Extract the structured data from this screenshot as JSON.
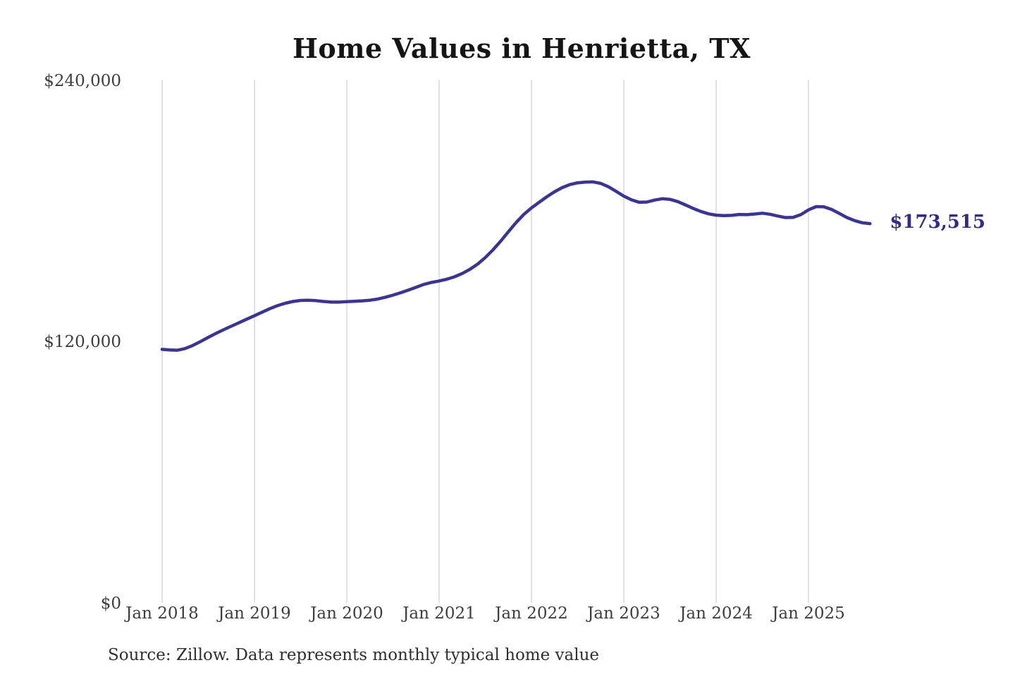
{
  "title": "Home Values in Henrietta, TX",
  "end_label": "$173,515",
  "source_note": "Source: Zillow. Data represents monthly typical home value",
  "colors": {
    "line": "#3b3490",
    "end_label": "#312d85",
    "gridline": "#c6c6c6",
    "title_text": "#151515",
    "axis_text": "#3e3e3e",
    "source_text": "#2f2f2f",
    "background": "#ffffff"
  },
  "chart_data": {
    "type": "line",
    "title": "Home Values in Henrietta, TX",
    "xlabel": "",
    "ylabel": "",
    "x_start": "Jan 2018",
    "x_end": "Sep 2025",
    "frequency": "monthly",
    "x_tick_labels": [
      "Jan 2018",
      "Jan 2019",
      "Jan 2020",
      "Jan 2021",
      "Jan 2022",
      "Jan 2023",
      "Jan 2024",
      "Jan 2025"
    ],
    "y_tick_labels": [
      "$240,000",
      "$120,000",
      "$0"
    ],
    "ylim": [
      0,
      240000
    ],
    "grid": "vertical-only",
    "legend": "none",
    "end_value": 173515,
    "values": [
      116000,
      115700,
      115600,
      116400,
      117800,
      119600,
      121500,
      123300,
      125000,
      126600,
      128200,
      129800,
      131400,
      133000,
      134600,
      136000,
      137100,
      137900,
      138400,
      138500,
      138300,
      137900,
      137600,
      137600,
      137800,
      138000,
      138200,
      138500,
      139000,
      139800,
      140800,
      141900,
      143100,
      144400,
      145700,
      146600,
      147300,
      148100,
      149200,
      150700,
      152600,
      155000,
      158000,
      161500,
      165500,
      169800,
      174000,
      177700,
      180700,
      183300,
      185800,
      188100,
      190000,
      191400,
      192200,
      192500,
      192600,
      191900,
      190400,
      188300,
      186100,
      184400,
      183300,
      183400,
      184300,
      184900,
      184600,
      183600,
      182100,
      180500,
      179100,
      178000,
      177400,
      177200,
      177300,
      177700,
      177600,
      177900,
      178300,
      177800,
      177000,
      176300,
      176400,
      177600,
      179800,
      181300,
      181200,
      180000,
      178200,
      176300,
      174900,
      173900,
      173515
    ]
  }
}
